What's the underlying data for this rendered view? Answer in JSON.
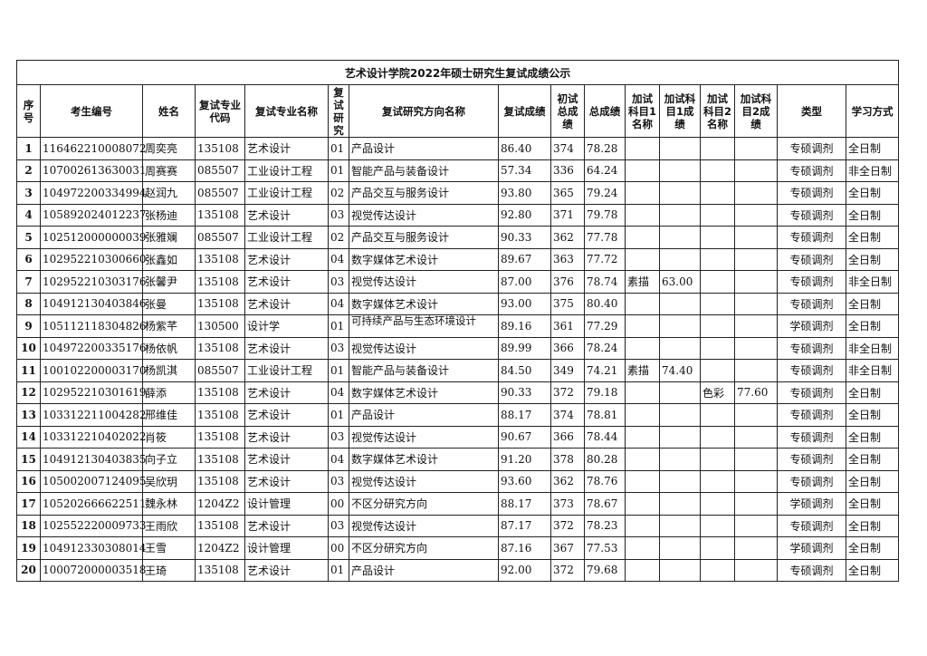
{
  "title": "艺术设计学院2022年硕士研究生复试成绩公示",
  "headers": [
    "序号",
    "考生编号",
    "姓名",
    "复试专业代码",
    "复试专业名称",
    "复试研究",
    "复试研究方向名称",
    "复试成绩",
    "初试总成绩",
    "总成绩",
    "加试科目1名称",
    "加试科目1成绩",
    "加试科目2名称",
    "加试科目2成绩",
    "类型",
    "学习方式"
  ],
  "rows": [
    [
      "1",
      "116462210008072",
      "周奕亮",
      "135108",
      "艺术设计",
      "01",
      "产品设计",
      "86.40",
      "374",
      "78.28",
      "",
      "",
      "",
      "",
      "专硕调剂",
      "全日制"
    ],
    [
      "2",
      "107002613630031",
      "周赛赛",
      "085507",
      "工业设计工程",
      "01",
      "智能产品与装备设计",
      "57.34",
      "336",
      "64.24",
      "",
      "",
      "",
      "",
      "专硕调剂",
      "非全日制"
    ],
    [
      "3",
      "104972200334994",
      "赵润九",
      "085507",
      "工业设计工程",
      "02",
      "产品交互与服务设计",
      "93.80",
      "365",
      "79.24",
      "",
      "",
      "",
      "",
      "专硕调剂",
      "全日制"
    ],
    [
      "4",
      "105892024012237",
      "张杨迪",
      "135108",
      "艺术设计",
      "03",
      "视觉传达设计",
      "92.80",
      "371",
      "79.78",
      "",
      "",
      "",
      "",
      "专硕调剂",
      "全日制"
    ],
    [
      "5",
      "102512000000039",
      "张雅斓",
      "085507",
      "工业设计工程",
      "02",
      "产品交互与服务设计",
      "90.33",
      "362",
      "77.78",
      "",
      "",
      "",
      "",
      "专硕调剂",
      "全日制"
    ],
    [
      "6",
      "102952210300660",
      "张鑫如",
      "135108",
      "艺术设计",
      "04",
      "数字媒体艺术设计",
      "89.67",
      "363",
      "77.72",
      "",
      "",
      "",
      "",
      "专硕调剂",
      "全日制"
    ],
    [
      "7",
      "102952210303176",
      "张馨尹",
      "135108",
      "艺术设计",
      "03",
      "视觉传达设计",
      "87.00",
      "376",
      "78.74",
      "素描",
      "63.00",
      "",
      "",
      "专硕调剂",
      "非全日制"
    ],
    [
      "8",
      "104912130403846",
      "张曼",
      "135108",
      "艺术设计",
      "04",
      "数字媒体艺术设计",
      "93.00",
      "375",
      "80.40",
      "",
      "",
      "",
      "",
      "专硕调剂",
      "全日制"
    ],
    [
      "9",
      "105112118304826",
      "杨紫芊",
      "130500",
      "设计学",
      "01",
      "可持续产品与生态环境设计",
      "89.16",
      "361",
      "77.29",
      "",
      "",
      "",
      "",
      "学硕调剂",
      "全日制"
    ],
    [
      "10",
      "104972200335176",
      "杨依帆",
      "135108",
      "艺术设计",
      "03",
      "视觉传达设计",
      "89.99",
      "366",
      "78.24",
      "",
      "",
      "",
      "",
      "专硕调剂",
      "非全日制"
    ],
    [
      "11",
      "100102200003170",
      "杨凯淇",
      "085507",
      "工业设计工程",
      "01",
      "智能产品与装备设计",
      "84.50",
      "349",
      "74.21",
      "素描",
      "74.40",
      "",
      "",
      "专硕调剂",
      "非全日制"
    ],
    [
      "12",
      "102952210301619",
      "薛添",
      "135108",
      "艺术设计",
      "04",
      "数字媒体艺术设计",
      "90.33",
      "372",
      "79.18",
      "",
      "",
      "色彩",
      "77.60",
      "专硕调剂",
      "全日制"
    ],
    [
      "13",
      "103312211004282",
      "邢维佳",
      "135108",
      "艺术设计",
      "01",
      "产品设计",
      "88.17",
      "374",
      "78.81",
      "",
      "",
      "",
      "",
      "专硕调剂",
      "全日制"
    ],
    [
      "14",
      "103312210402022",
      "肖筱",
      "135108",
      "艺术设计",
      "03",
      "视觉传达设计",
      "90.67",
      "366",
      "78.44",
      "",
      "",
      "",
      "",
      "专硕调剂",
      "全日制"
    ],
    [
      "15",
      "104912130403835",
      "向子立",
      "135108",
      "艺术设计",
      "04",
      "数字媒体艺术设计",
      "91.20",
      "378",
      "80.28",
      "",
      "",
      "",
      "",
      "专硕调剂",
      "全日制"
    ],
    [
      "16",
      "105002007124095",
      "吴欣玥",
      "135108",
      "艺术设计",
      "03",
      "视觉传达设计",
      "93.60",
      "362",
      "78.76",
      "",
      "",
      "",
      "",
      "专硕调剂",
      "全日制"
    ],
    [
      "17",
      "105202666622511",
      "魏永林",
      "1204Z2",
      "设计管理",
      "00",
      "不区分研究方向",
      "88.17",
      "373",
      "78.67",
      "",
      "",
      "",
      "",
      "学硕调剂",
      "全日制"
    ],
    [
      "18",
      "102552220009733",
      "王雨欣",
      "135108",
      "艺术设计",
      "03",
      "视觉传达设计",
      "87.17",
      "372",
      "78.23",
      "",
      "",
      "",
      "",
      "专硕调剂",
      "全日制"
    ],
    [
      "19",
      "104912330308014",
      "王雪",
      "1204Z2",
      "设计管理",
      "00",
      "不区分研究方向",
      "87.16",
      "367",
      "77.53",
      "",
      "",
      "",
      "",
      "学硕调剂",
      "全日制"
    ],
    [
      "20",
      "100072000003518",
      "王琦",
      "135108",
      "艺术设计",
      "01",
      "产品设计",
      "92.00",
      "372",
      "79.68",
      "",
      "",
      "",
      "",
      "专硕调剂",
      "全日制"
    ]
  ]
}
